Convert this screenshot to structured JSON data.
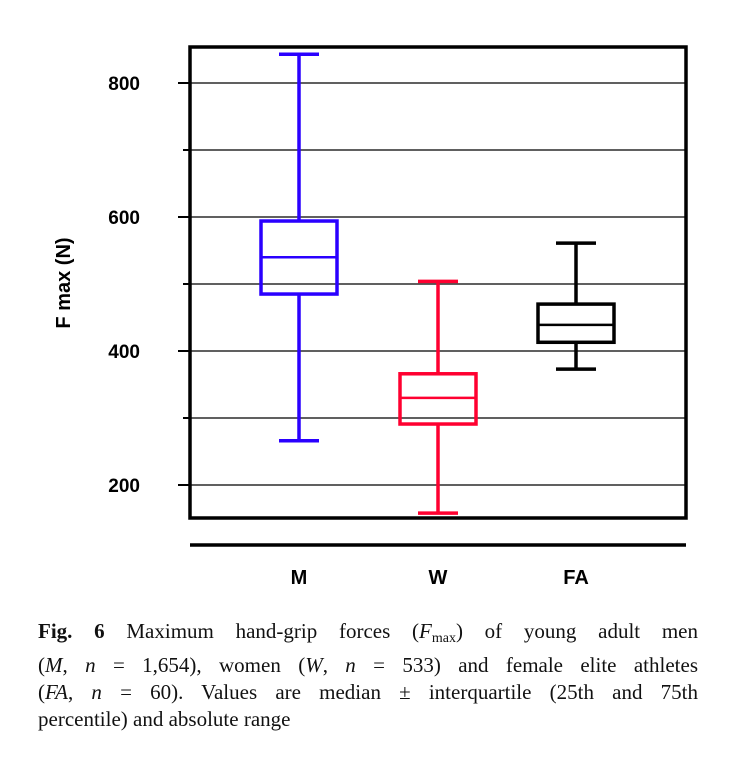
{
  "chart_data": {
    "type": "box",
    "title": "",
    "xlabel": "",
    "ylabel": "F max (N)",
    "ylim": [
      150,
      852
    ],
    "yticks": [
      200,
      400,
      600,
      800
    ],
    "grid": true,
    "categories": [
      "M",
      "W",
      "FA"
    ],
    "series": [
      {
        "category": "M",
        "min": 266,
        "q1": 485,
        "median": 540,
        "q3": 594,
        "max": 843,
        "color": "#2a00ff"
      },
      {
        "category": "W",
        "min": 158,
        "q1": 291,
        "median": 330,
        "q3": 366,
        "max": 504,
        "color": "#ff0030"
      },
      {
        "category": "FA",
        "min": 373,
        "q1": 413,
        "median": 439,
        "q3": 470,
        "max": 561,
        "color": "#000000"
      }
    ]
  },
  "caption": {
    "lines": [
      [
        {
          "t": "Fig. 6",
          "s": "b"
        },
        {
          "t": " Maximum hand-grip forces ("
        },
        {
          "t": "F",
          "s": "i"
        },
        {
          "t": "max",
          "s": "sub"
        },
        {
          "t": ") of young adult men"
        }
      ],
      [
        {
          "t": "("
        },
        {
          "t": "M",
          "s": "i"
        },
        {
          "t": ", "
        },
        {
          "t": "n",
          "s": "i"
        },
        {
          "t": " = 1,654), women ("
        },
        {
          "t": "W",
          "s": "i"
        },
        {
          "t": ", "
        },
        {
          "t": "n",
          "s": "i"
        },
        {
          "t": " = 533) and female elite athletes"
        }
      ],
      [
        {
          "t": "("
        },
        {
          "t": "FA",
          "s": "i"
        },
        {
          "t": ", "
        },
        {
          "t": "n",
          "s": "i"
        },
        {
          "t": " = 60). Values are median ± interquartile (25th and 75th"
        }
      ],
      [
        {
          "t": "percentile) and absolute range"
        }
      ]
    ]
  }
}
